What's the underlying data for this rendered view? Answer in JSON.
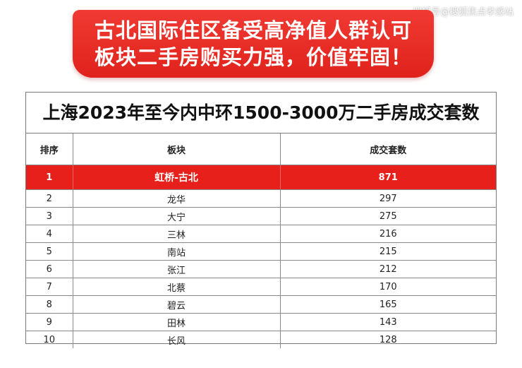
{
  "watermark": "搜狐号@搜狐焦点孝感站",
  "banner": {
    "line1": "古北国际住区备受高净值人群认可",
    "line2": "板块二手房购买力强，价值牢固！"
  },
  "colors": {
    "banner_red": "#e52a22",
    "highlight_row": "#e8201b"
  },
  "chart_data": {
    "type": "table",
    "title": "上海2023年至今内中环1500-3000万二手房成交套数",
    "columns": [
      "排序",
      "板块",
      "成交套数"
    ],
    "rows": [
      {
        "rank": "1",
        "area": "虹桥-古北",
        "count": "871",
        "highlight": true
      },
      {
        "rank": "2",
        "area": "龙华",
        "count": "297"
      },
      {
        "rank": "3",
        "area": "大宁",
        "count": "275"
      },
      {
        "rank": "4",
        "area": "三林",
        "count": "216"
      },
      {
        "rank": "5",
        "area": "南站",
        "count": "215"
      },
      {
        "rank": "6",
        "area": "张江",
        "count": "212"
      },
      {
        "rank": "7",
        "area": "北蔡",
        "count": "170"
      },
      {
        "rank": "8",
        "area": "碧云",
        "count": "165"
      },
      {
        "rank": "9",
        "area": "田林",
        "count": "143"
      },
      {
        "rank": "10",
        "area": "长风",
        "count": "128"
      }
    ]
  }
}
